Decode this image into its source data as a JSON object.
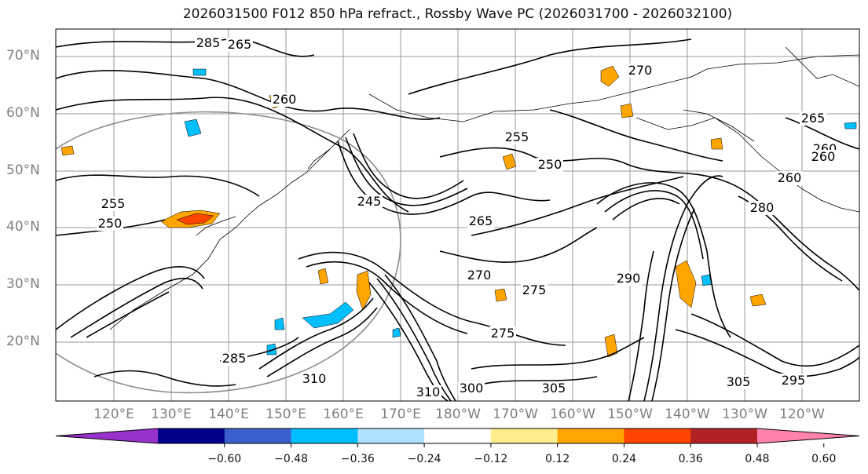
{
  "title": "2026031500 F012 850 hPa refract., Rossby Wave PC (2026031700 - 2026032100)",
  "map": {
    "lat_labels": [
      "70°N",
      "60°N",
      "50°N",
      "40°N",
      "30°N",
      "20°N"
    ],
    "lon_labels": [
      "120°E",
      "130°E",
      "140°E",
      "150°E",
      "160°E",
      "170°E",
      "180°W",
      "170°W",
      "160°W",
      "150°W",
      "140°W",
      "130°W",
      "120°W"
    ],
    "label_color": "#808080",
    "contour_color": "#000000",
    "contour_labels": [
      "265",
      "285",
      "270",
      "260",
      "255",
      "250",
      "245",
      "265",
      "250",
      "255",
      "270",
      "275",
      "275",
      "285",
      "310",
      "300",
      "310",
      "305",
      "260",
      "265",
      "260",
      "280",
      "290",
      "295",
      "305",
      "260"
    ]
  },
  "colorbar": {
    "colors": [
      "#9932cc",
      "#00008b",
      "#3a5fcd",
      "#00bfff",
      "#b0e0ff",
      "#ffffff",
      "#ffec8b",
      "#ffa500",
      "#ff4500",
      "#b22222",
      "#ff82ab"
    ],
    "labels": [
      "−0.60",
      "−0.48",
      "−0.36",
      "−0.24",
      "−0.12",
      "0.12",
      "0.24",
      "0.36",
      "0.48",
      "0.60"
    ]
  }
}
